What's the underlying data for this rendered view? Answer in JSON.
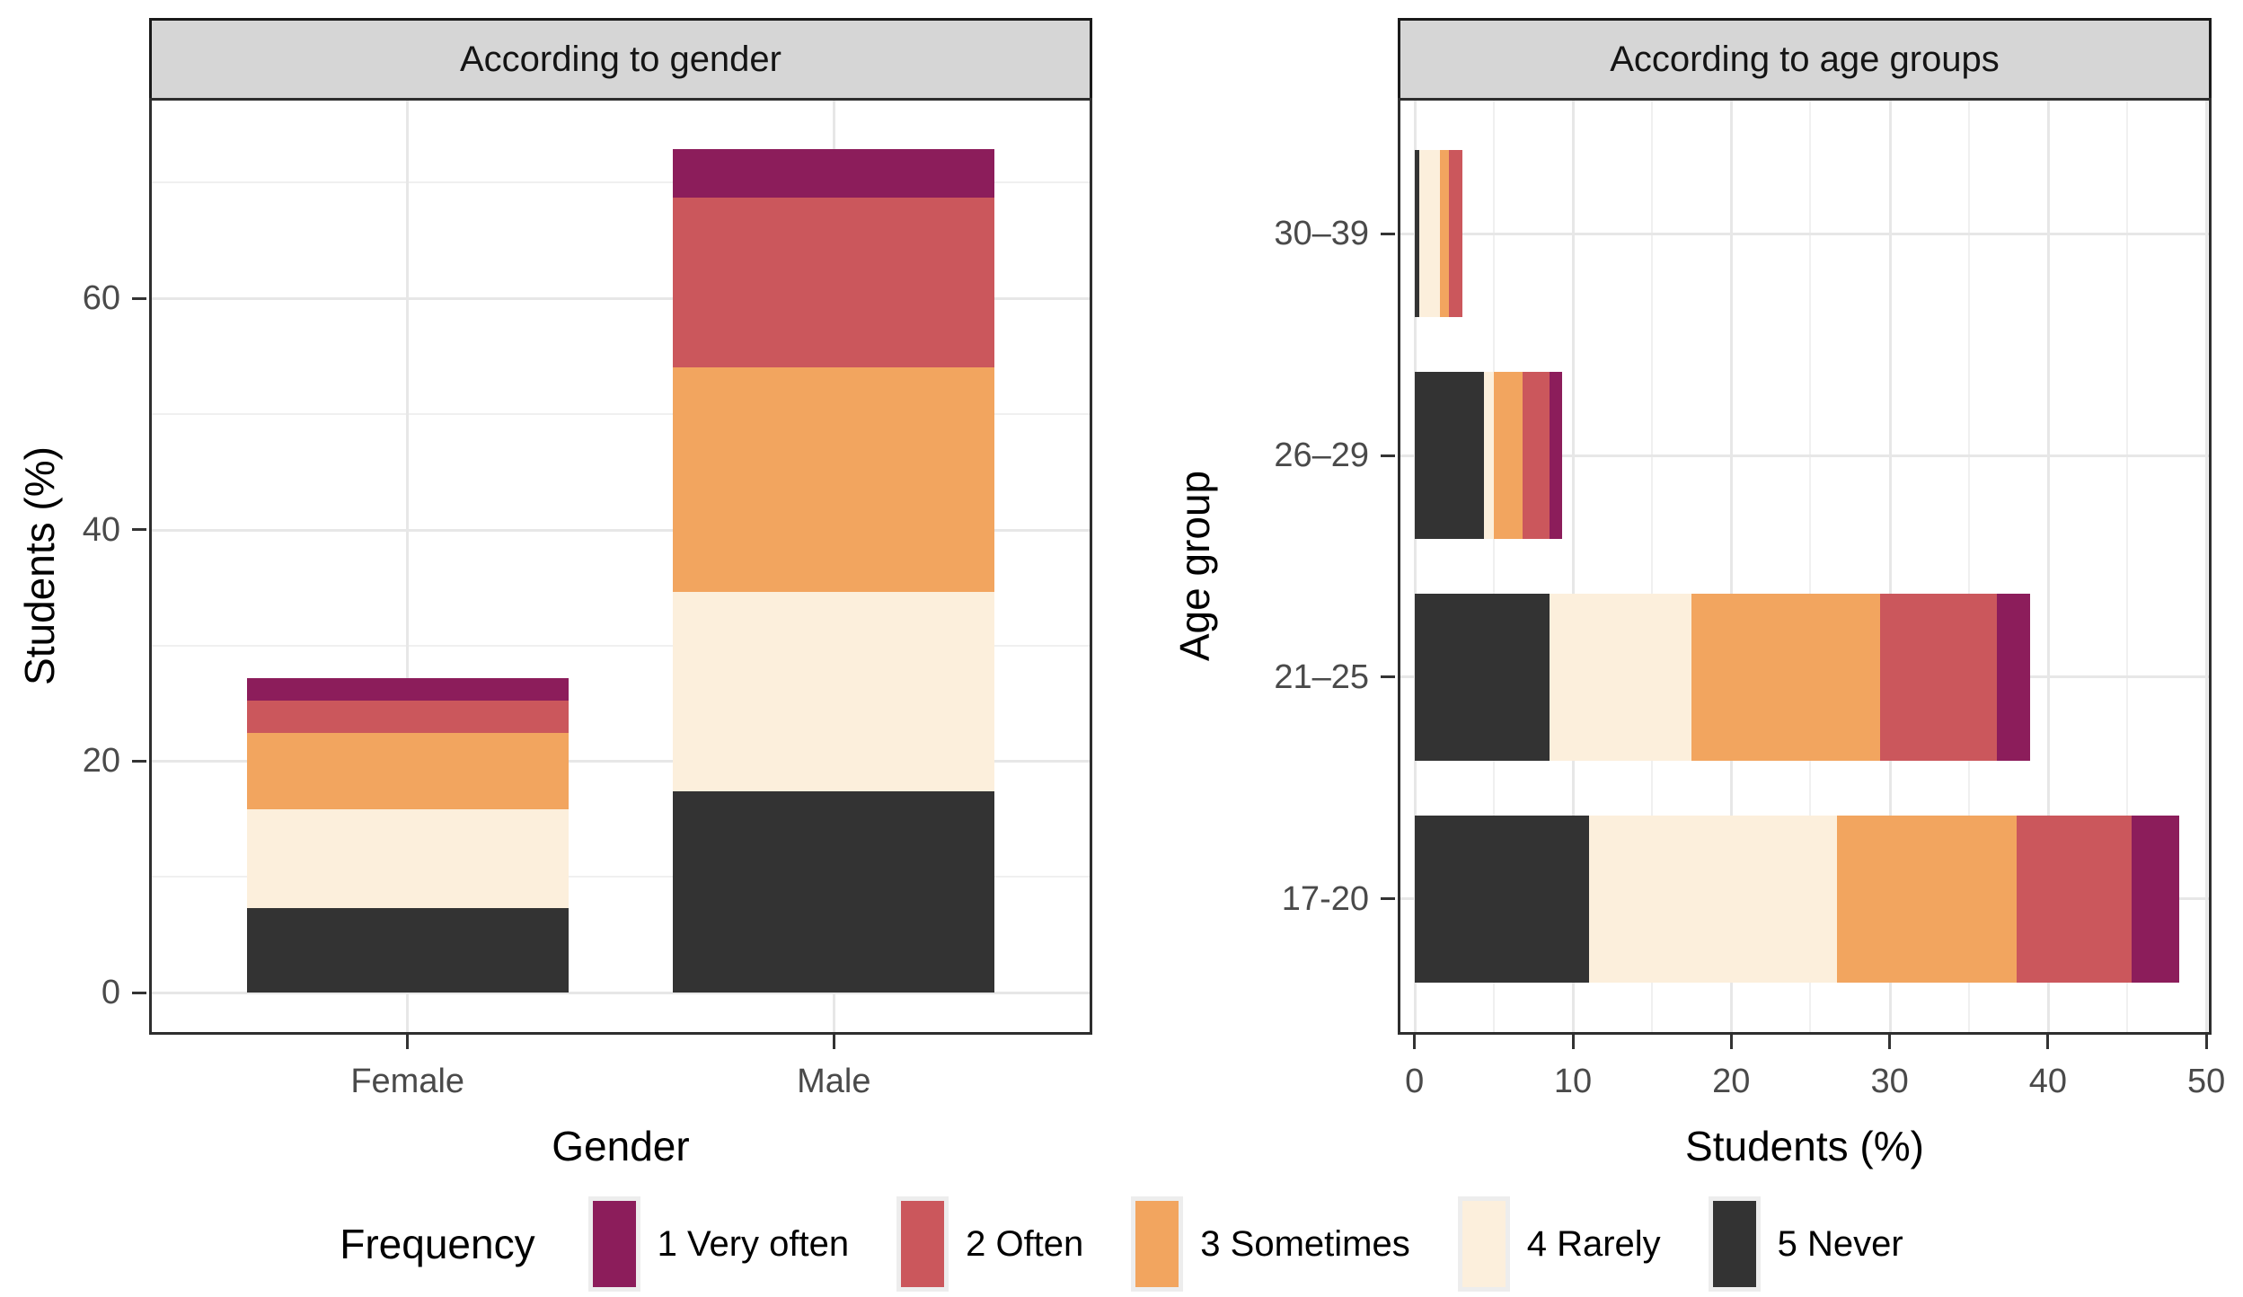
{
  "legend": {
    "title": "Frequency",
    "entries": [
      {
        "label": "1 Very often",
        "color": "#8C1D5B"
      },
      {
        "label": "2 Often",
        "color": "#CB575C"
      },
      {
        "label": "3 Sometimes",
        "color": "#F2A55F"
      },
      {
        "label": "4 Rarely",
        "color": "#FCEFDC"
      },
      {
        "label": "5 Never",
        "color": "#333333"
      }
    ]
  },
  "colors": {
    "strip_background": "#d6d6d6",
    "panel_border": "#2e2e2e",
    "grid_major": "#e7e7e7",
    "grid_minor": "#f0f0f0",
    "tick_label": "#4a4a4a",
    "axis_tick": "#333333"
  },
  "chart_data": [
    {
      "type": "bar",
      "orientation": "vertical",
      "stacked": true,
      "title": "According to gender",
      "xlabel": "Gender",
      "ylabel": "Students (%)",
      "categories": [
        "Female",
        "Male"
      ],
      "series": [
        {
          "name": "1 Very often",
          "values": [
            2.0,
            4.2
          ]
        },
        {
          "name": "2 Often",
          "values": [
            2.8,
            14.7
          ]
        },
        {
          "name": "3 Sometimes",
          "values": [
            6.6,
            19.4
          ]
        },
        {
          "name": "4 Rarely",
          "values": [
            8.5,
            17.2
          ]
        },
        {
          "name": "5 Never",
          "values": [
            7.3,
            17.4
          ]
        }
      ],
      "stack_order_from_axis": [
        "5 Never",
        "4 Rarely",
        "3 Sometimes",
        "2 Often",
        "1 Very often"
      ],
      "totals": {
        "Female": 27.2,
        "Male": 72.9
      },
      "ylim": [
        0,
        77
      ],
      "yticks": [
        0,
        20,
        40,
        60
      ],
      "grid_minor_step": 10,
      "grid": true,
      "legend_position": "bottom"
    },
    {
      "type": "bar",
      "orientation": "horizontal",
      "stacked": true,
      "title": "According to age groups",
      "xlabel": "Students (%)",
      "ylabel": "Age group",
      "categories": [
        "30–39",
        "26–29",
        "21–25",
        "17-20"
      ],
      "series": [
        {
          "name": "1 Very often",
          "values": [
            0,
            0.8,
            2.1,
            3.0
          ]
        },
        {
          "name": "2 Often",
          "values": [
            0.8,
            1.7,
            7.4,
            7.3
          ]
        },
        {
          "name": "3 Sometimes",
          "values": [
            0.6,
            1.8,
            11.9,
            11.3
          ]
        },
        {
          "name": "4 Rarely",
          "values": [
            1.3,
            0.6,
            9.0,
            15.7
          ]
        },
        {
          "name": "5 Never",
          "values": [
            0.3,
            4.4,
            8.5,
            11.0
          ]
        }
      ],
      "stack_order_from_axis": [
        "5 Never",
        "4 Rarely",
        "3 Sometimes",
        "2 Often",
        "1 Very often"
      ],
      "totals": {
        "30–39": 3.0,
        "26–29": 9.3,
        "21–25": 38.9,
        "17-20": 48.3
      },
      "xlim": [
        0,
        50.5
      ],
      "xticks": [
        0,
        10,
        20,
        30,
        40,
        50
      ],
      "grid_minor_step": 5,
      "grid": true,
      "legend_position": "bottom"
    }
  ]
}
